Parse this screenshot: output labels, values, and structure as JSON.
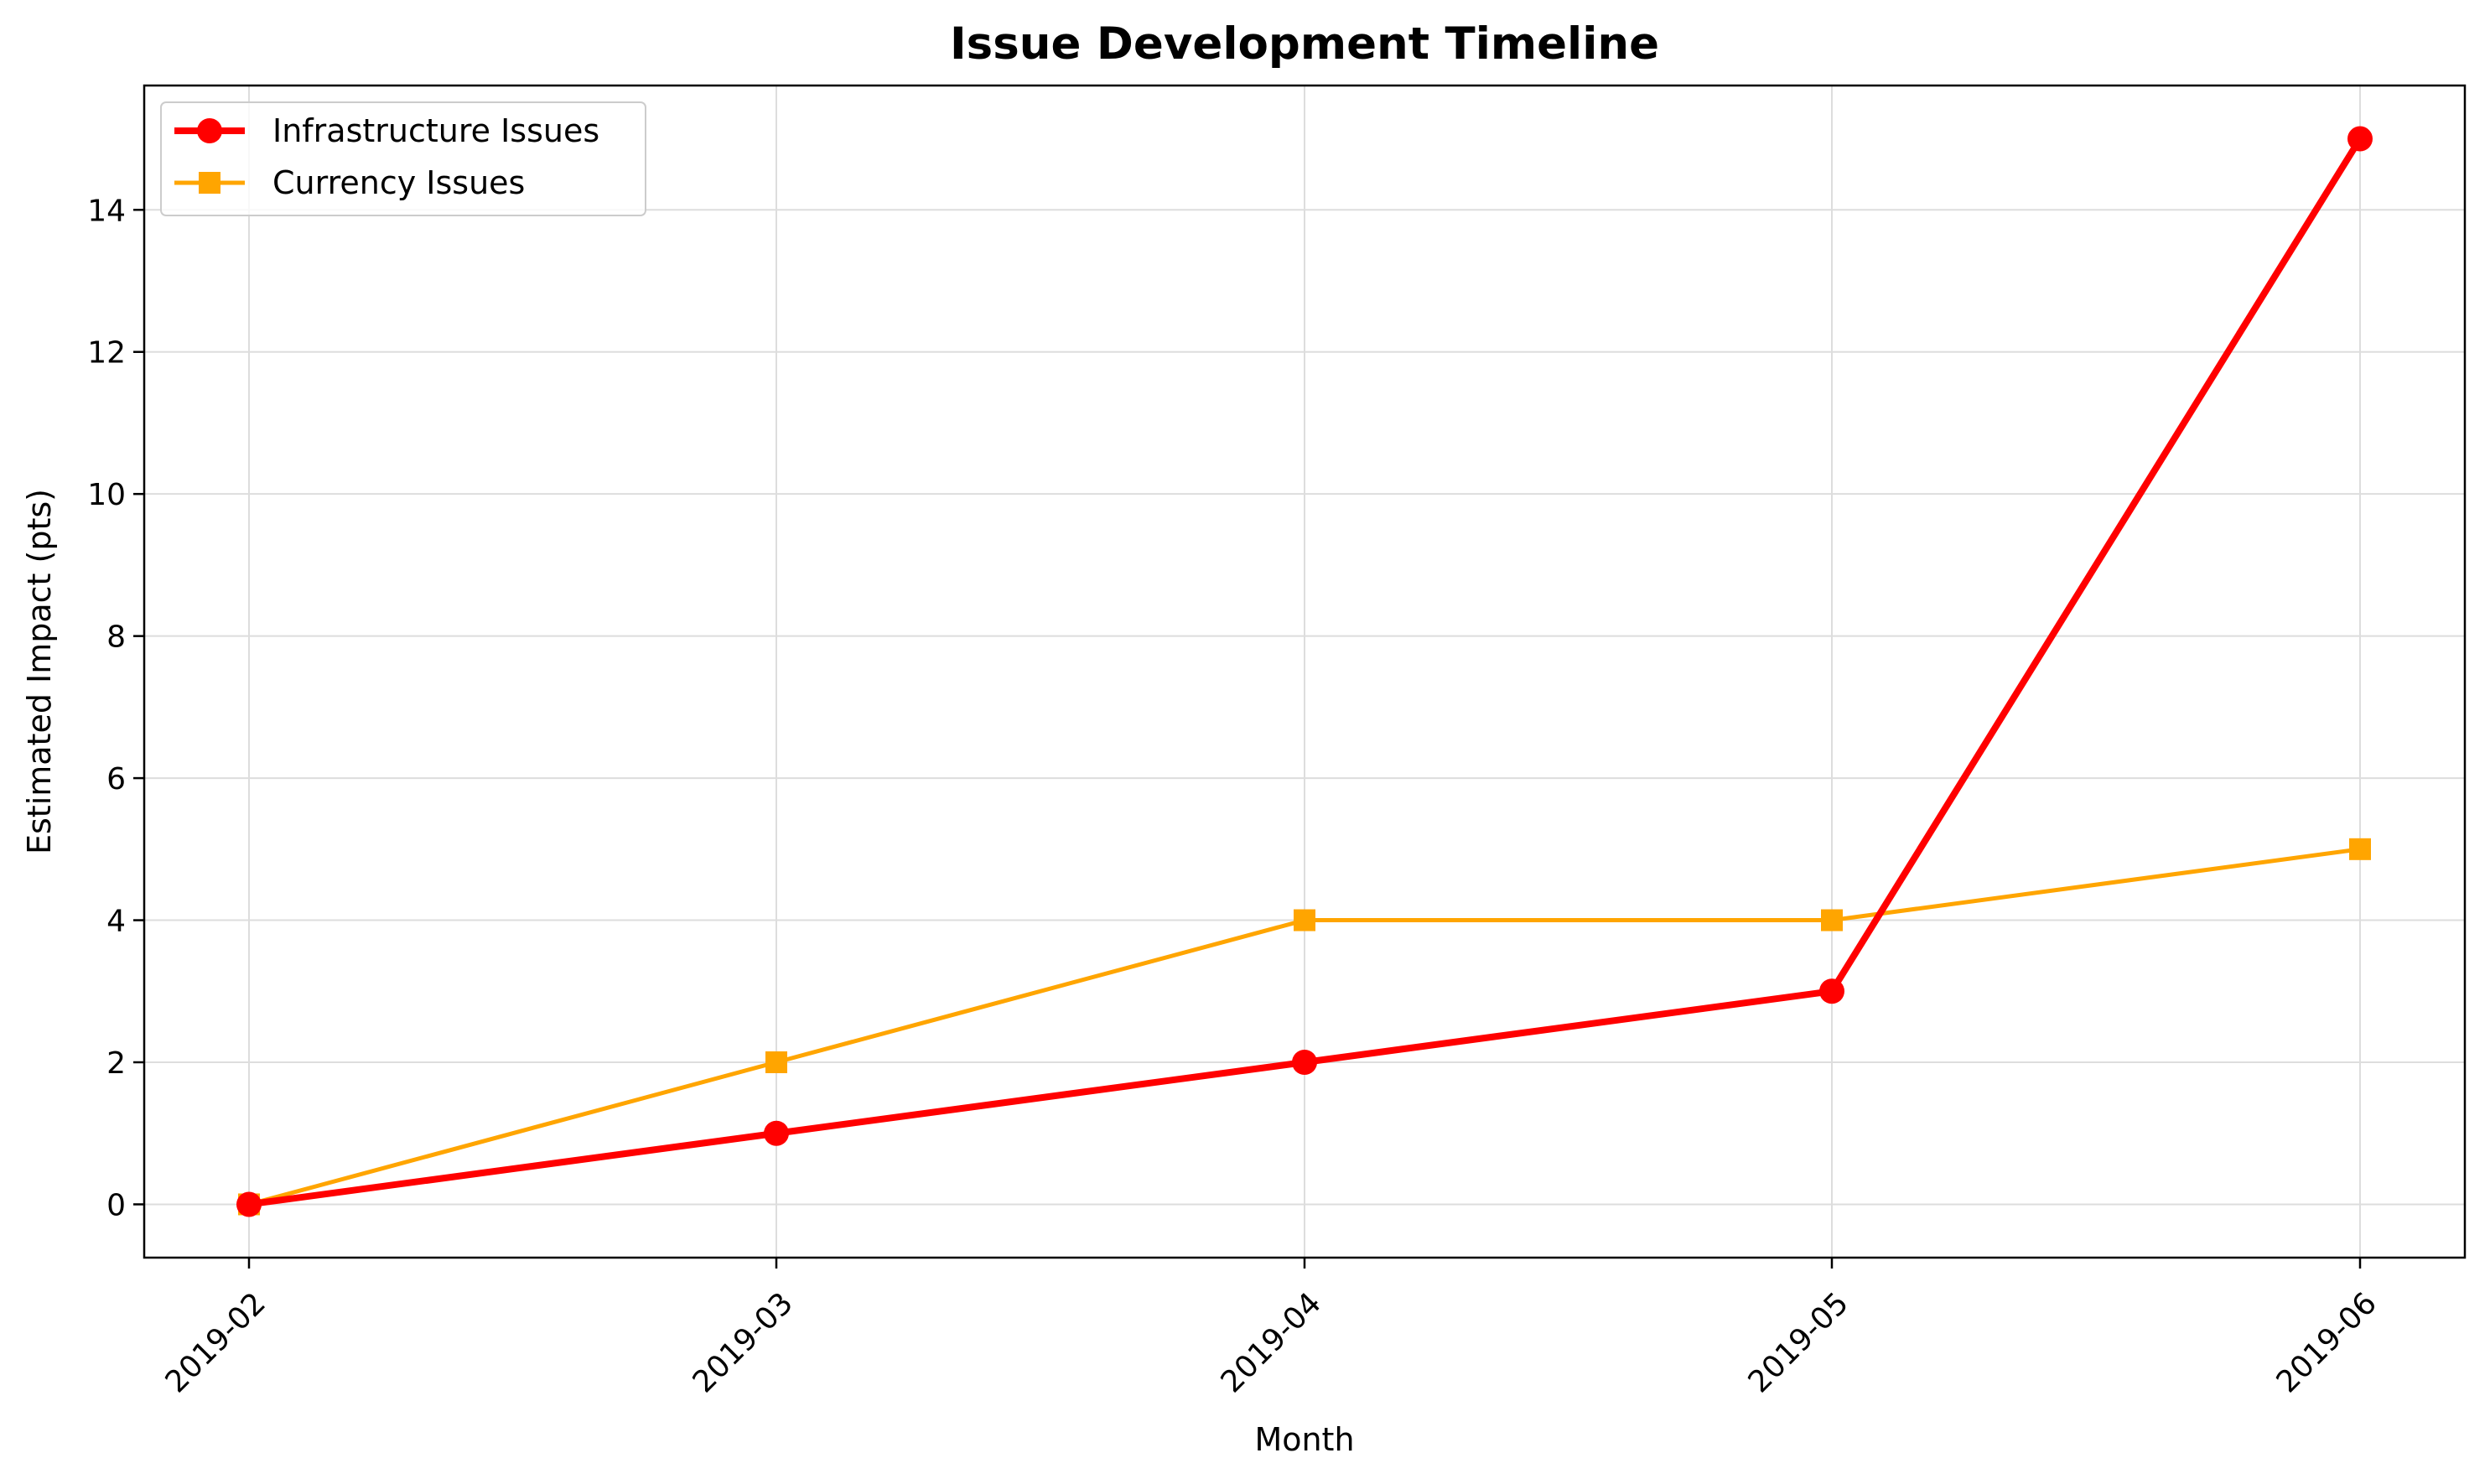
{
  "chart_data": {
    "type": "line",
    "title": "Issue Development Timeline",
    "xlabel": "Month",
    "ylabel": "Estimated Impact (pts)",
    "categories": [
      "2019-02",
      "2019-03",
      "2019-04",
      "2019-05",
      "2019-06"
    ],
    "yticks": [
      0,
      2,
      4,
      6,
      8,
      10,
      12,
      14
    ],
    "ylim": [
      -0.75,
      15.75
    ],
    "grid": true,
    "legend_position": "top-left",
    "series": [
      {
        "name": "Infrastructure Issues",
        "values": [
          0,
          1,
          2,
          3,
          15
        ],
        "color": "#ff0000",
        "marker": "circle"
      },
      {
        "name": "Currency Issues",
        "values": [
          0,
          2,
          4,
          4,
          5
        ],
        "color": "#ffa500",
        "marker": "square"
      }
    ]
  }
}
